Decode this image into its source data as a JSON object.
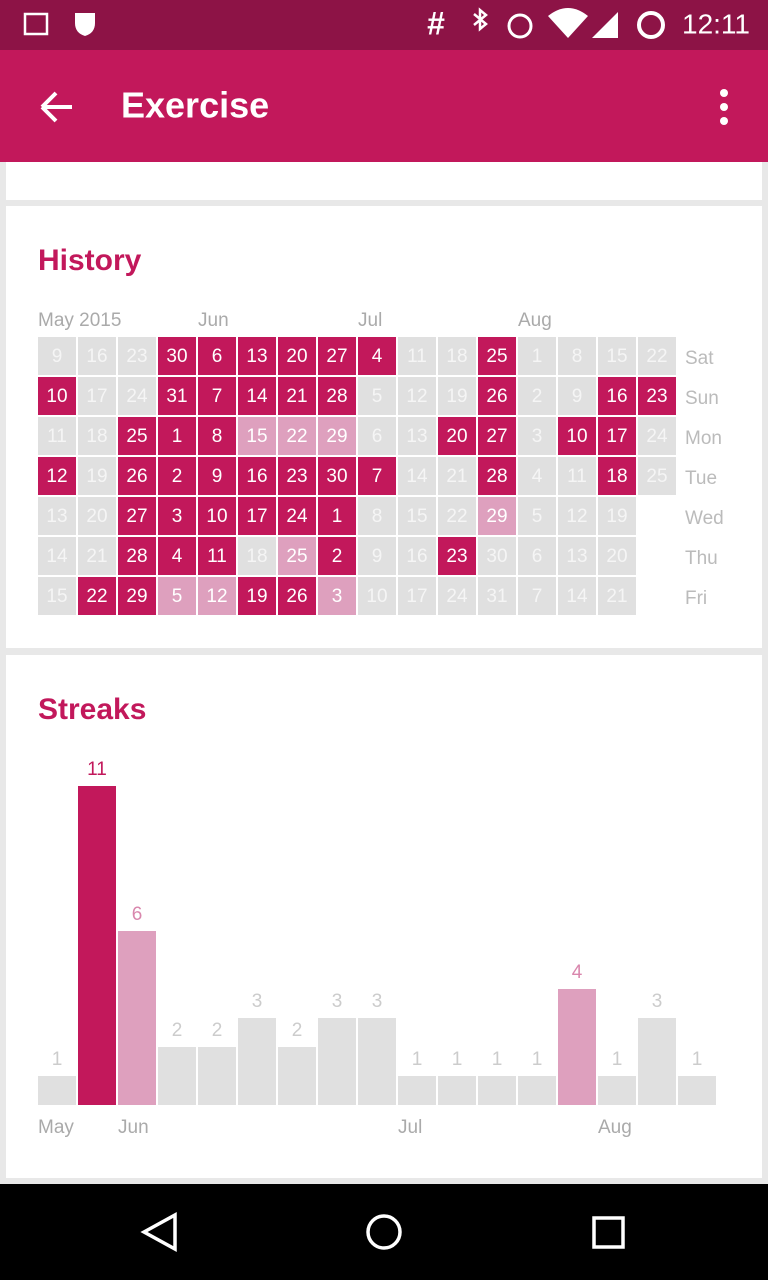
{
  "status_bar": {
    "hash": "#",
    "time": "12:11"
  },
  "app_bar": {
    "title": "Exercise"
  },
  "level_colors": {
    "cell": [
      "#e0e0e0",
      "#dea0be",
      "#c2185b"
    ],
    "cell_text": [
      "#f5f5f5",
      "#ffffff",
      "#ffffff"
    ],
    "bar": [
      "#e0e0e0",
      "#dea0be",
      "#c2185b"
    ],
    "bar_label": [
      "#cccccc",
      "#d987ad",
      "#c2185b"
    ]
  },
  "history": {
    "title": "History",
    "months": [
      {
        "label": "May 2015",
        "week": 0
      },
      {
        "label": "Jun",
        "week": 4
      },
      {
        "label": "Jul",
        "week": 8
      },
      {
        "label": "Aug",
        "week": 12
      }
    ],
    "weekdays": [
      "Sat",
      "Sun",
      "Mon",
      "Tue",
      "Wed",
      "Thu",
      "Fri"
    ],
    "weeks": [
      [
        {
          "day": 9,
          "level": 0
        },
        {
          "day": 10,
          "level": 2
        },
        {
          "day": 11,
          "level": 0
        },
        {
          "day": 12,
          "level": 2
        },
        {
          "day": 13,
          "level": 0
        },
        {
          "day": 14,
          "level": 0
        },
        {
          "day": 15,
          "level": 0
        }
      ],
      [
        {
          "day": 16,
          "level": 0
        },
        {
          "day": 17,
          "level": 0
        },
        {
          "day": 18,
          "level": 0
        },
        {
          "day": 19,
          "level": 0
        },
        {
          "day": 20,
          "level": 0
        },
        {
          "day": 21,
          "level": 0
        },
        {
          "day": 22,
          "level": 2
        }
      ],
      [
        {
          "day": 23,
          "level": 0
        },
        {
          "day": 24,
          "level": 0
        },
        {
          "day": 25,
          "level": 2
        },
        {
          "day": 26,
          "level": 2
        },
        {
          "day": 27,
          "level": 2
        },
        {
          "day": 28,
          "level": 2
        },
        {
          "day": 29,
          "level": 2
        }
      ],
      [
        {
          "day": 30,
          "level": 2
        },
        {
          "day": 31,
          "level": 2
        },
        {
          "day": 1,
          "level": 2
        },
        {
          "day": 2,
          "level": 2
        },
        {
          "day": 3,
          "level": 2
        },
        {
          "day": 4,
          "level": 2
        },
        {
          "day": 5,
          "level": 1
        }
      ],
      [
        {
          "day": 6,
          "level": 2
        },
        {
          "day": 7,
          "level": 2
        },
        {
          "day": 8,
          "level": 2
        },
        {
          "day": 9,
          "level": 2
        },
        {
          "day": 10,
          "level": 2
        },
        {
          "day": 11,
          "level": 2
        },
        {
          "day": 12,
          "level": 1
        }
      ],
      [
        {
          "day": 13,
          "level": 2
        },
        {
          "day": 14,
          "level": 2
        },
        {
          "day": 15,
          "level": 1
        },
        {
          "day": 16,
          "level": 2
        },
        {
          "day": 17,
          "level": 2
        },
        {
          "day": 18,
          "level": 0
        },
        {
          "day": 19,
          "level": 2
        }
      ],
      [
        {
          "day": 20,
          "level": 2
        },
        {
          "day": 21,
          "level": 2
        },
        {
          "day": 22,
          "level": 1
        },
        {
          "day": 23,
          "level": 2
        },
        {
          "day": 24,
          "level": 2
        },
        {
          "day": 25,
          "level": 1
        },
        {
          "day": 26,
          "level": 2
        }
      ],
      [
        {
          "day": 27,
          "level": 2
        },
        {
          "day": 28,
          "level": 2
        },
        {
          "day": 29,
          "level": 1
        },
        {
          "day": 30,
          "level": 2
        },
        {
          "day": 1,
          "level": 2
        },
        {
          "day": 2,
          "level": 2
        },
        {
          "day": 3,
          "level": 1
        }
      ],
      [
        {
          "day": 4,
          "level": 2
        },
        {
          "day": 5,
          "level": 0
        },
        {
          "day": 6,
          "level": 0
        },
        {
          "day": 7,
          "level": 2
        },
        {
          "day": 8,
          "level": 0
        },
        {
          "day": 9,
          "level": 0
        },
        {
          "day": 10,
          "level": 0
        }
      ],
      [
        {
          "day": 11,
          "level": 0
        },
        {
          "day": 12,
          "level": 0
        },
        {
          "day": 13,
          "level": 0
        },
        {
          "day": 14,
          "level": 0
        },
        {
          "day": 15,
          "level": 0
        },
        {
          "day": 16,
          "level": 0
        },
        {
          "day": 17,
          "level": 0
        }
      ],
      [
        {
          "day": 18,
          "level": 0
        },
        {
          "day": 19,
          "level": 0
        },
        {
          "day": 20,
          "level": 2
        },
        {
          "day": 21,
          "level": 0
        },
        {
          "day": 22,
          "level": 0
        },
        {
          "day": 23,
          "level": 2
        },
        {
          "day": 24,
          "level": 0
        }
      ],
      [
        {
          "day": 25,
          "level": 2
        },
        {
          "day": 26,
          "level": 2
        },
        {
          "day": 27,
          "level": 2
        },
        {
          "day": 28,
          "level": 2
        },
        {
          "day": 29,
          "level": 1
        },
        {
          "day": 30,
          "level": 0
        },
        {
          "day": 31,
          "level": 0
        }
      ],
      [
        {
          "day": 1,
          "level": 0
        },
        {
          "day": 2,
          "level": 0
        },
        {
          "day": 3,
          "level": 0
        },
        {
          "day": 4,
          "level": 0
        },
        {
          "day": 5,
          "level": 0
        },
        {
          "day": 6,
          "level": 0
        },
        {
          "day": 7,
          "level": 0
        }
      ],
      [
        {
          "day": 8,
          "level": 0
        },
        {
          "day": 9,
          "level": 0
        },
        {
          "day": 10,
          "level": 2
        },
        {
          "day": 11,
          "level": 0
        },
        {
          "day": 12,
          "level": 0
        },
        {
          "day": 13,
          "level": 0
        },
        {
          "day": 14,
          "level": 0
        }
      ],
      [
        {
          "day": 15,
          "level": 0
        },
        {
          "day": 16,
          "level": 2
        },
        {
          "day": 17,
          "level": 2
        },
        {
          "day": 18,
          "level": 2
        },
        {
          "day": 19,
          "level": 0
        },
        {
          "day": 20,
          "level": 0
        },
        {
          "day": 21,
          "level": 0
        }
      ],
      [
        {
          "day": 22,
          "level": 0
        },
        {
          "day": 23,
          "level": 2
        },
        {
          "day": 24,
          "level": 0
        },
        {
          "day": 25,
          "level": 0
        }
      ]
    ]
  },
  "streaks": {
    "type": "bar",
    "title": "Streaks",
    "categories": [
      "May",
      null,
      "Jun",
      null,
      null,
      null,
      null,
      null,
      null,
      "Jul",
      null,
      null,
      null,
      null,
      "Aug",
      null,
      null
    ],
    "values": [
      1,
      11,
      6,
      2,
      2,
      3,
      2,
      3,
      3,
      1,
      1,
      1,
      1,
      4,
      1,
      3,
      1
    ],
    "levels": [
      0,
      2,
      1,
      0,
      0,
      0,
      0,
      0,
      0,
      0,
      0,
      0,
      0,
      1,
      0,
      0,
      0
    ]
  }
}
